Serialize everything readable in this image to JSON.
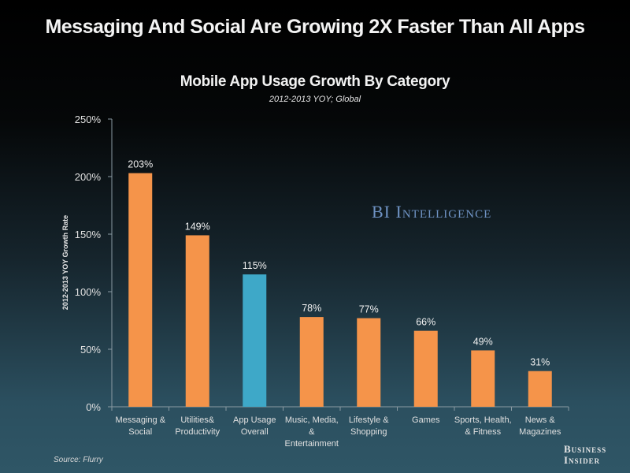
{
  "headline": "Messaging And Social Are Growing 2X Faster Than All Apps",
  "watermark": "BI Intelligence",
  "source": "Source: Flurry",
  "brand": {
    "line1": "Business",
    "line2": "Insider"
  },
  "colors": {
    "bar_default": "#f5944a",
    "bar_highlight": "#3ea8c8",
    "axis": "#8a9aa3"
  },
  "chart_data": {
    "type": "bar",
    "title": "Mobile App Usage Growth By Category",
    "subtitle": "2012-2013 YOY; Global",
    "xlabel": "",
    "ylabel": "2012-2013 YOY Growth Rate",
    "ylim": [
      0,
      250
    ],
    "yticks": [
      0,
      50,
      100,
      150,
      200,
      250
    ],
    "ytick_labels": [
      "0%",
      "50%",
      "100%",
      "150%",
      "200%",
      "250%"
    ],
    "grid": false,
    "legend": "none",
    "categories": [
      [
        "Messaging &",
        "Social"
      ],
      [
        "Utilities&",
        "Productivity"
      ],
      [
        "App Usage",
        "Overall"
      ],
      [
        "Music, Media,",
        "&",
        "Entertainment"
      ],
      [
        "Lifestyle &",
        "Shopping"
      ],
      [
        "Games"
      ],
      [
        "Sports, Health,",
        "& Fitness"
      ],
      [
        "News &",
        "Magazines"
      ]
    ],
    "values": [
      203,
      149,
      115,
      78,
      77,
      66,
      49,
      31
    ],
    "data_labels": [
      "203%",
      "149%",
      "115%",
      "78%",
      "77%",
      "66%",
      "49%",
      "31%"
    ],
    "highlight_index": 2
  }
}
